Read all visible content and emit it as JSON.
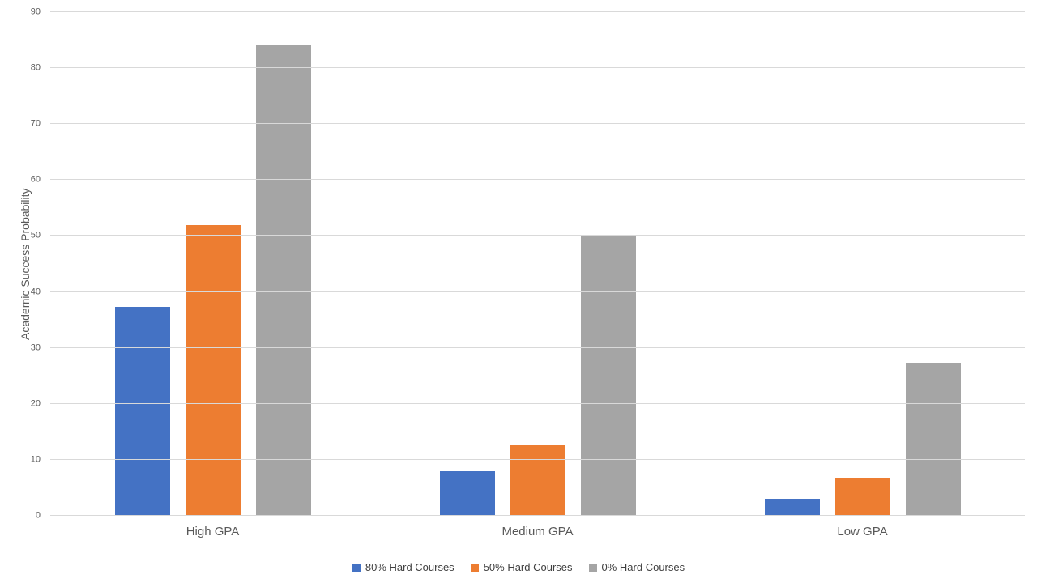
{
  "chart_data": {
    "type": "bar",
    "title": "",
    "ylabel": "Academic Success Probability",
    "xlabel": "",
    "ylim": [
      0,
      90
    ],
    "yticks": [
      0,
      10,
      20,
      30,
      40,
      50,
      60,
      70,
      80,
      90
    ],
    "grid": true,
    "legend_position": "bottom",
    "categories": [
      "High GPA",
      "Medium GPA",
      "Low GPA"
    ],
    "series": [
      {
        "name": "80% Hard Courses",
        "color": "#4472C4",
        "values": [
          37.3,
          8.0,
          3.1
        ]
      },
      {
        "name": "50% Hard Courses",
        "color": "#ED7D31",
        "values": [
          52.0,
          12.7,
          6.8
        ]
      },
      {
        "name": "0% Hard Courses",
        "color": "#A5A5A5",
        "values": [
          84.0,
          50.0,
          27.3
        ]
      }
    ],
    "colors": {
      "gridline": "#d9d9d9",
      "axis_text": "#595959",
      "legend_text": "#404040",
      "background": "#ffffff"
    }
  }
}
